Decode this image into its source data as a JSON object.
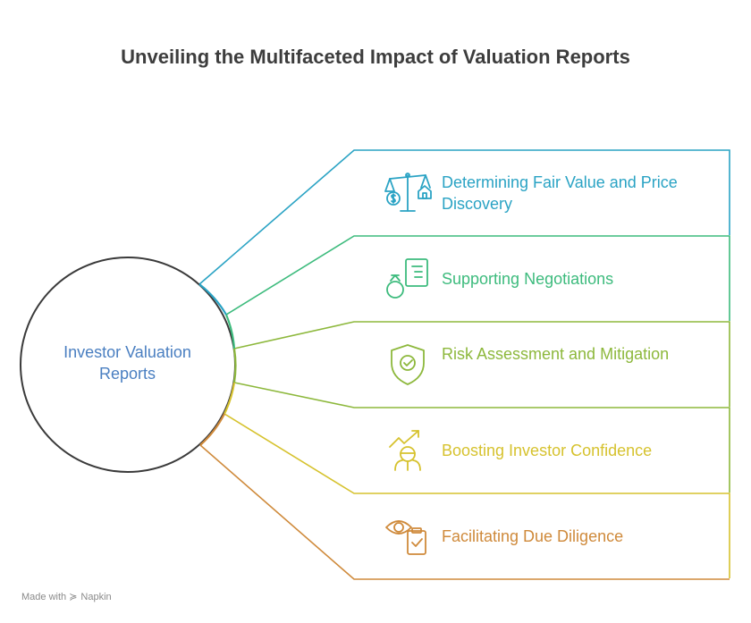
{
  "title": "Unveiling the Multifaceted Impact of Valuation Reports",
  "center": {
    "label": "Investor Valuation Reports"
  },
  "items": [
    {
      "label": "Determining Fair Value and Price Discovery",
      "color": "#2aa3c4",
      "icon": "scale-money-house-icon"
    },
    {
      "label": "Supporting Negotiations",
      "color": "#3dbb7d",
      "icon": "person-document-icon"
    },
    {
      "label": "Risk Assessment and Mitigation",
      "color": "#8db83c",
      "icon": "shield-check-icon"
    },
    {
      "label": "Boosting Investor Confidence",
      "color": "#d6c22e",
      "icon": "person-growth-arrow-icon"
    },
    {
      "label": "Facilitating Due Diligence",
      "color": "#cf8a3b",
      "icon": "eye-clipboard-icon"
    }
  ],
  "footer": {
    "made_with": "Made with",
    "brand": "Napkin"
  }
}
